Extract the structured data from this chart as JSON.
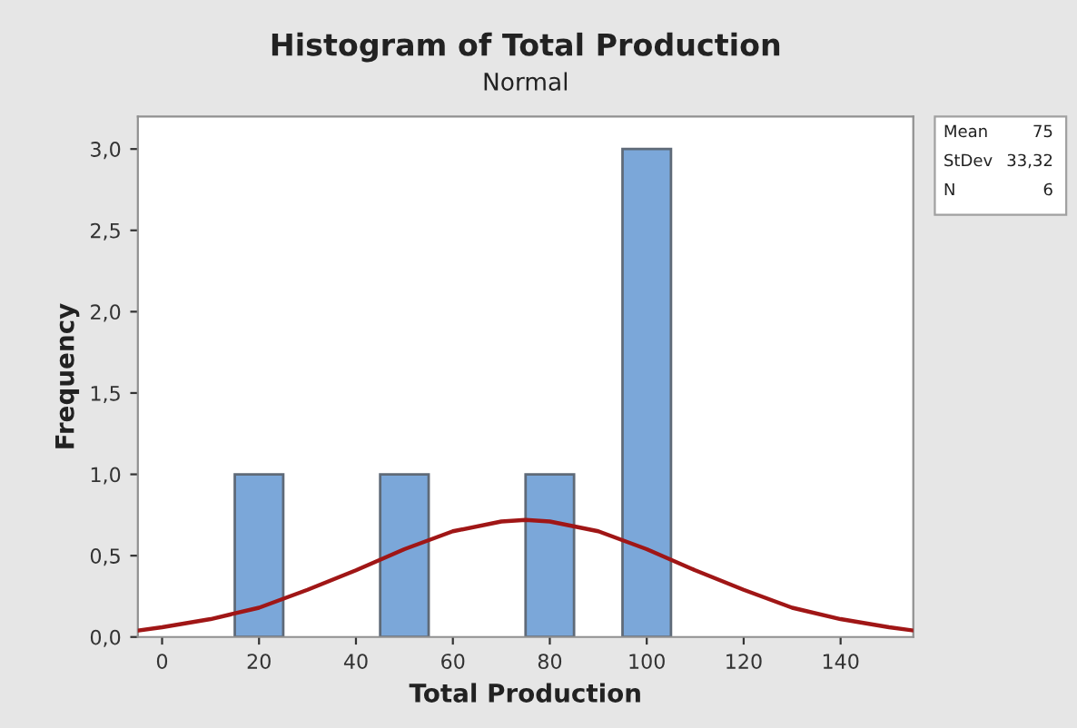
{
  "chart_data": {
    "type": "histogram",
    "title": "Histogram of Total Production",
    "subtitle": "Normal",
    "xlabel": "Total Production",
    "ylabel": "Frequency",
    "series": [
      {
        "bins": [
          15,
          25,
          35,
          45,
          55,
          65,
          75,
          85,
          95,
          105
        ],
        "values": [
          1,
          0,
          0,
          1,
          0,
          0,
          1,
          0,
          3
        ],
        "color": "#7ba7d9"
      },
      {
        "type": "line",
        "x": [
          -5,
          0,
          10,
          20,
          30,
          40,
          50,
          60,
          70,
          75,
          80,
          90,
          100,
          110,
          120,
          130,
          140,
          150,
          155
        ],
        "values": [
          0.04,
          0.06,
          0.11,
          0.18,
          0.29,
          0.41,
          0.54,
          0.65,
          0.71,
          0.72,
          0.71,
          0.65,
          0.54,
          0.41,
          0.29,
          0.18,
          0.11,
          0.06,
          0.04
        ],
        "color": "#a01616"
      }
    ],
    "xlim": [
      -5,
      155
    ],
    "ylim": [
      0,
      3.2
    ],
    "xticks": [
      0,
      20,
      40,
      60,
      80,
      100,
      120,
      140
    ],
    "yticks": [
      {
        "value": 0,
        "label": "0,0"
      },
      {
        "value": 0.5,
        "label": "0,5"
      },
      {
        "value": 1,
        "label": "1,0"
      },
      {
        "value": 1.5,
        "label": "1,5"
      },
      {
        "value": 2,
        "label": "2,0"
      },
      {
        "value": 2.5,
        "label": "2,5"
      },
      {
        "value": 3,
        "label": "3,0"
      }
    ],
    "annotations": [
      [
        "Mean",
        "75"
      ],
      [
        "StDev",
        "33,32"
      ],
      [
        "N",
        "6"
      ]
    ],
    "grid": false
  }
}
